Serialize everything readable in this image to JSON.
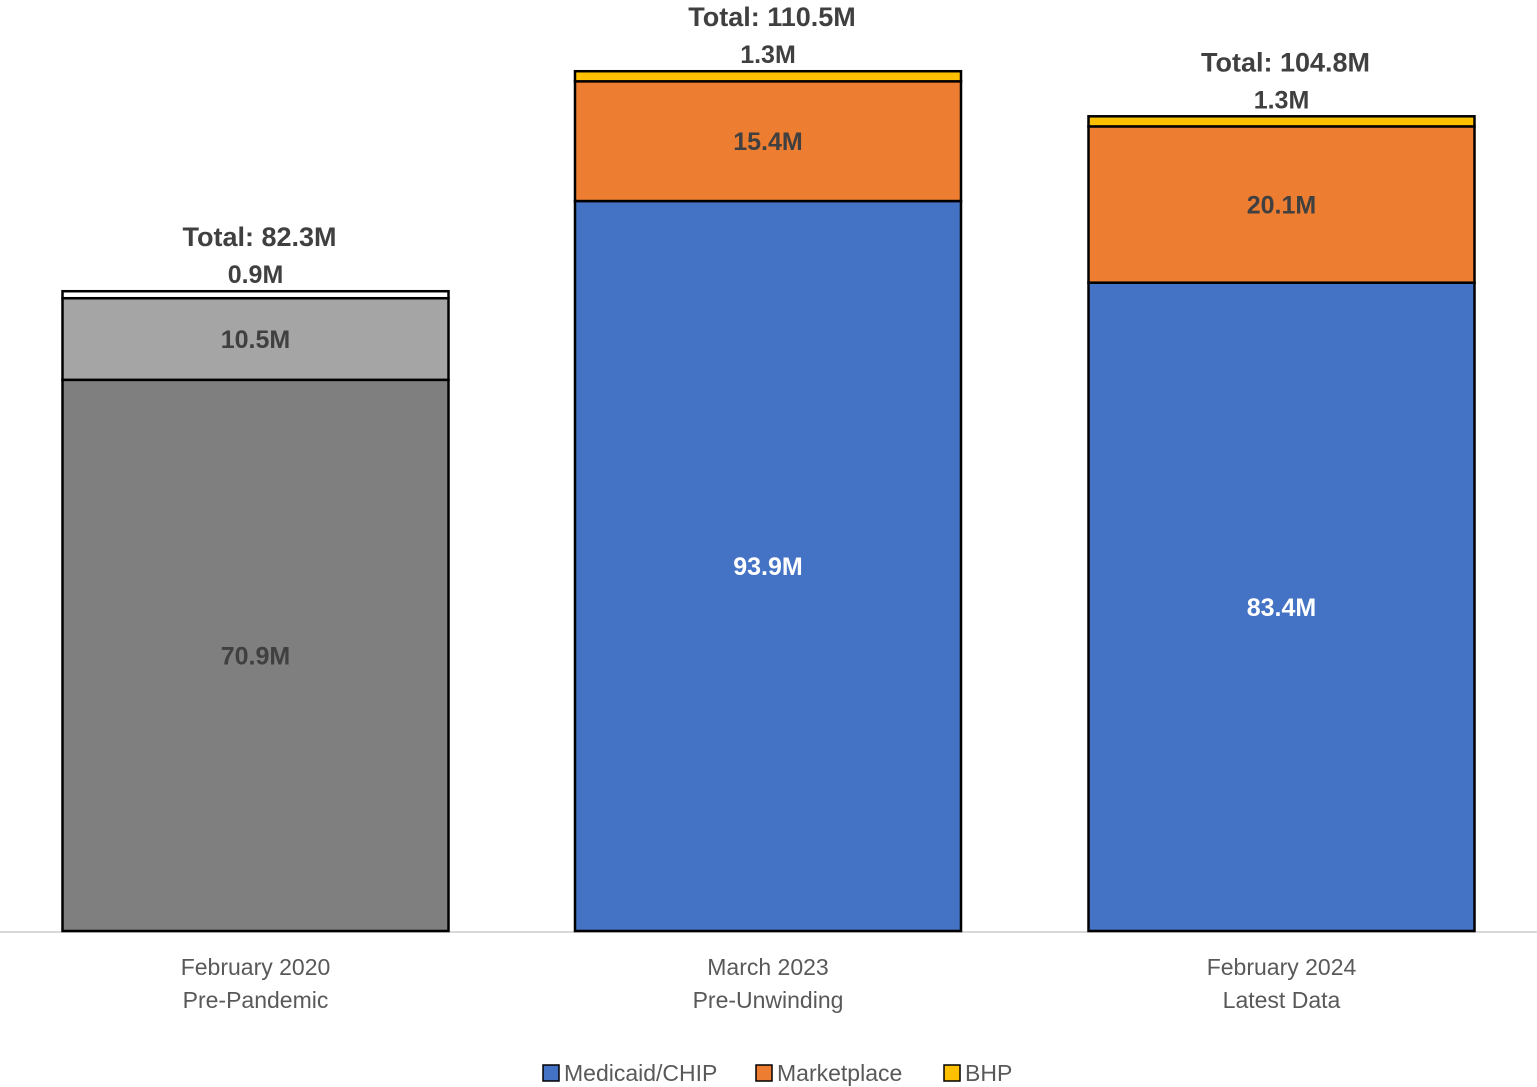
{
  "chart_data": {
    "type": "bar",
    "stacked": true,
    "categories": [
      [
        "February 2020",
        "Pre-Pandemic"
      ],
      [
        "March 2023",
        "Pre-Unwinding"
      ],
      [
        "February 2024",
        "Latest Data"
      ]
    ],
    "totals": [
      "Total: 82.3M",
      "Total: 110.5M",
      "Total: 104.8M"
    ],
    "total_values": [
      82.3,
      110.5,
      104.8
    ],
    "series": [
      {
        "name": "Medicaid/CHIP",
        "values": [
          70.9,
          93.9,
          83.4
        ],
        "labels": [
          "70.9M",
          "93.9M",
          "83.4M"
        ],
        "colors": [
          "#7f7f7f",
          "#4472c4",
          "#4472c4"
        ],
        "label_colors": [
          "#404040",
          "#ffffff",
          "#ffffff"
        ]
      },
      {
        "name": "Marketplace",
        "values": [
          10.5,
          15.4,
          20.1
        ],
        "labels": [
          "10.5M",
          "15.4M",
          "20.1M"
        ],
        "colors": [
          "#a5a5a5",
          "#ed7d31",
          "#ed7d31"
        ],
        "label_colors": [
          "#404040",
          "#404040",
          "#404040"
        ]
      },
      {
        "name": "BHP",
        "values": [
          0.9,
          1.3,
          1.3
        ],
        "labels": [
          "0.9M",
          "1.3M",
          "1.3M"
        ],
        "colors": [
          "#ffffff",
          "#ffc000",
          "#ffc000"
        ],
        "label_colors": [
          "#404040",
          "#404040",
          "#404040"
        ]
      }
    ],
    "legend": [
      {
        "name": "Medicaid/CHIP",
        "color": "#4472c4"
      },
      {
        "name": "Marketplace",
        "color": "#ed7d31"
      },
      {
        "name": "BHP",
        "color": "#ffc000"
      }
    ],
    "legend_position": "bottom",
    "ylim": [
      0,
      110.5
    ],
    "grid": false,
    "title": "",
    "xlabel": "",
    "ylabel": ""
  }
}
